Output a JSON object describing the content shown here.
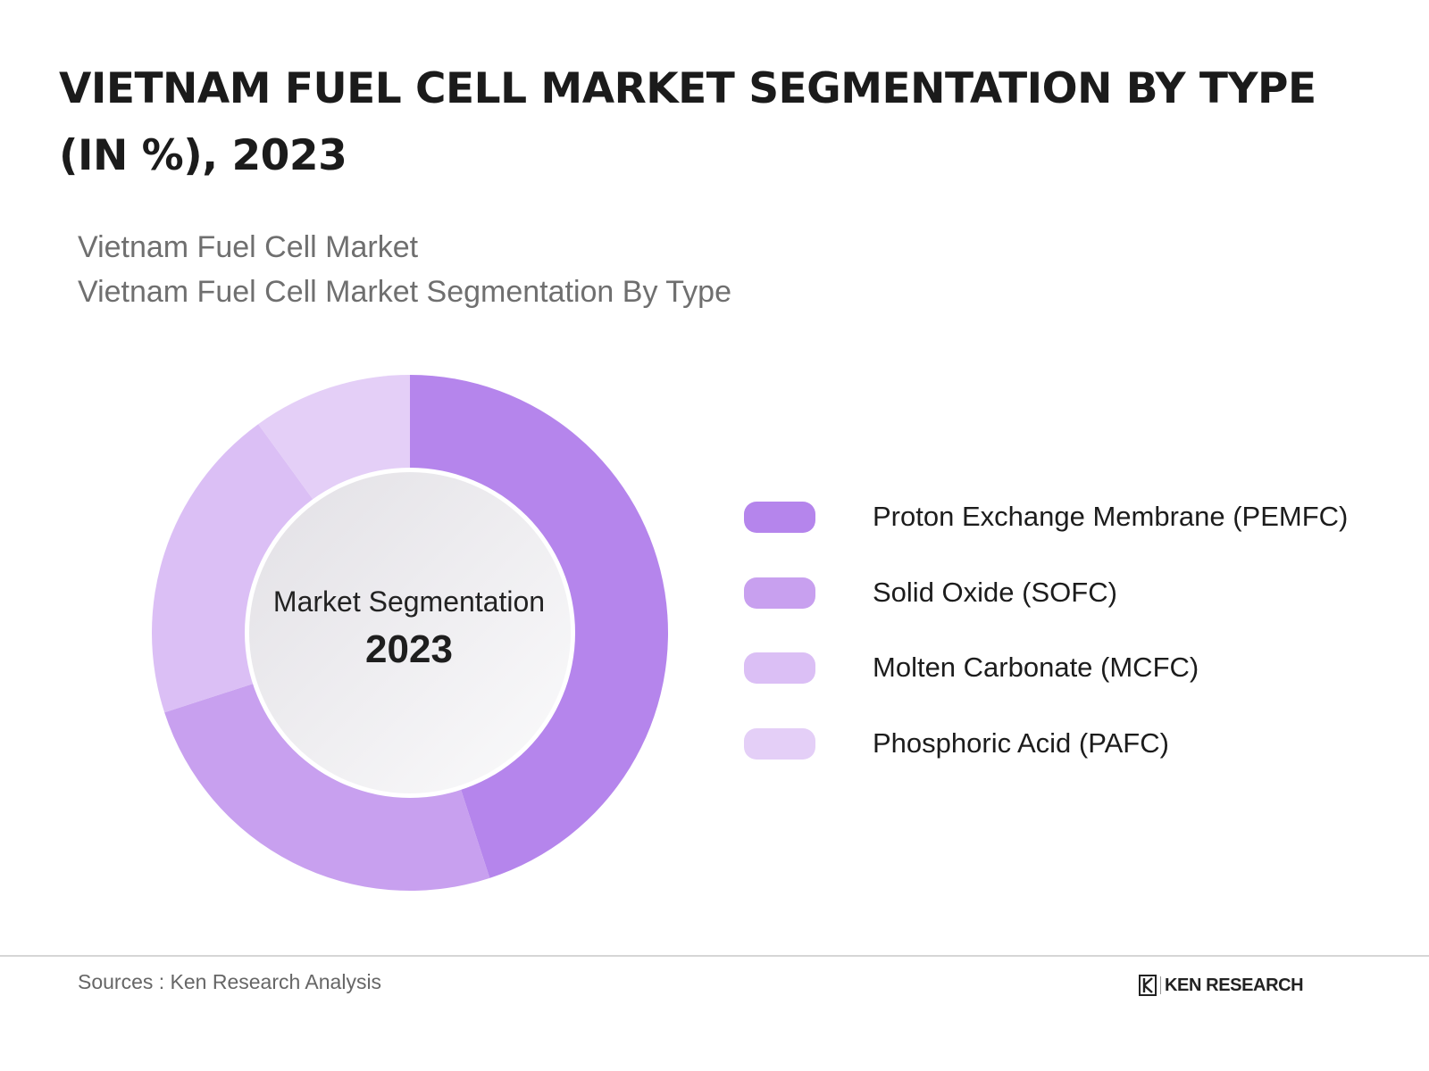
{
  "header": {
    "title_line1": "VIETNAM FUEL CELL MARKET SEGMENTATION BY TYPE",
    "title_line2": "(IN %), 2023",
    "subtitle_line1": "Vietnam Fuel Cell Market",
    "subtitle_line2": "Vietnam Fuel Cell Market Segmentation By Type"
  },
  "chart_data": {
    "type": "pie",
    "variant": "donut",
    "center_text": "Market Segmentation",
    "center_year": "2023",
    "categories": [
      "Proton Exchange Membrane (PEMFC)",
      "Solid Oxide (SOFC)",
      "Molten Carbonate (MCFC)",
      "Phosphoric Acid (PAFC)"
    ],
    "values": [
      45,
      25,
      20,
      10
    ],
    "colors": [
      "#b585ec",
      "#c8a0ef",
      "#dbbff5",
      "#e4cff7"
    ],
    "legend_position": "right"
  },
  "footer": {
    "sources": "Sources : Ken Research Analysis",
    "logo_text": "KEN RESEARCH"
  }
}
